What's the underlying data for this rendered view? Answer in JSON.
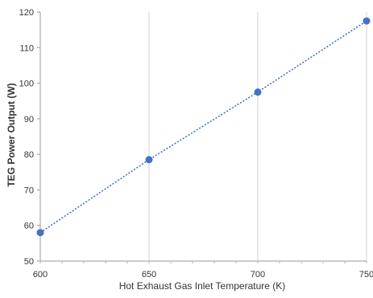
{
  "chart_data": {
    "type": "line",
    "title": "",
    "xlabel": "Hot Exhaust Gas Inlet Temperature (K)",
    "ylabel": "TEG Power Output (W)",
    "xlim": [
      600,
      750
    ],
    "ylim": [
      50,
      120
    ],
    "x_ticks": [
      600,
      650,
      700,
      750
    ],
    "y_ticks": [
      50,
      60,
      70,
      80,
      90,
      100,
      110,
      120
    ],
    "x_tick_labels": [
      "600",
      "650",
      "700",
      "750"
    ],
    "y_tick_labels": [
      "50",
      "60",
      "70",
      "80",
      "90",
      "100",
      "110",
      "120"
    ],
    "grid": "vertical",
    "legend": "none",
    "series": [
      {
        "x": [
          600,
          650,
          700,
          750
        ],
        "values": [
          58,
          78.5,
          97.5,
          117.5
        ],
        "color": "#4472c4",
        "line_style": "dotted",
        "marker": "circle"
      }
    ]
  }
}
